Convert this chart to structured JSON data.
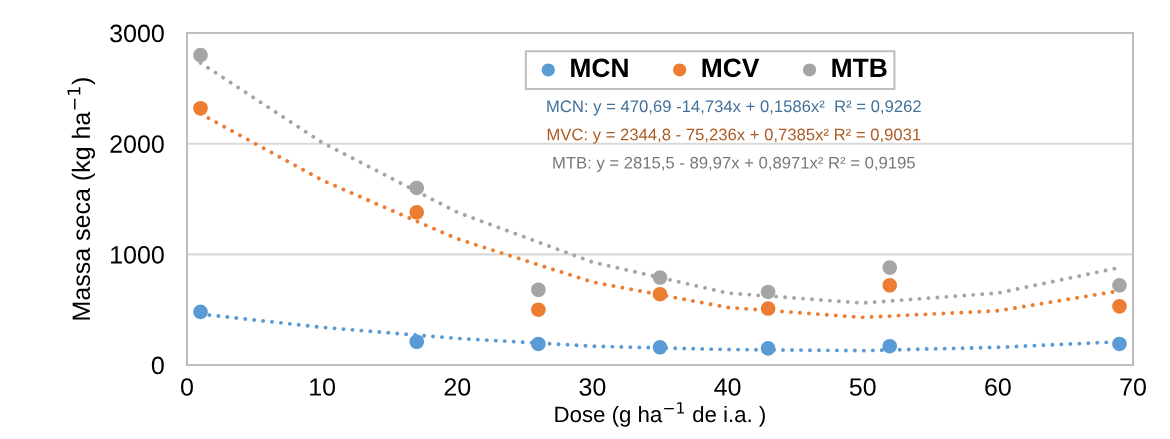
{
  "chart_data": {
    "type": "scatter",
    "xlabel": "Dose (g ha$^{−1}$ de i.a. )",
    "ylabel": "Massa seca (kg ha$^{−1}$)",
    "x": [
      1,
      17,
      26,
      35,
      43,
      52,
      69
    ],
    "xlim": [
      0,
      70
    ],
    "xticks": [
      0,
      10,
      20,
      30,
      40,
      50,
      60,
      70
    ],
    "ylim": [
      0,
      3000
    ],
    "yticks": [
      0,
      1000,
      2000,
      3000
    ],
    "grid": "y",
    "legend": "top",
    "marker": "circle",
    "series": [
      {
        "name": "MCN",
        "color": "#5b9bd5",
        "values": [
          480,
          210,
          190,
          160,
          150,
          170,
          190
        ]
      },
      {
        "name": "MCV",
        "color": "#ed7d31",
        "values": [
          2320,
          1380,
          500,
          640,
          510,
          720,
          530
        ]
      },
      {
        "name": "MTB",
        "color": "#a5a5a5",
        "values": [
          2800,
          1600,
          680,
          790,
          660,
          880,
          720
        ]
      },
      {
        "type": "line",
        "color": "#5b9bd5",
        "line_style": "dotted",
        "marker": "none",
        "x": [
          1,
          10,
          20,
          30,
          40,
          50,
          60,
          69
        ],
        "values": [
          460,
          340,
          240,
          170,
          140,
          130,
          160,
          210
        ]
      },
      {
        "type": "line",
        "color": "#ed7d31",
        "line_style": "dotted",
        "marker": "none",
        "x": [
          1,
          10,
          20,
          30,
          40,
          50,
          60,
          69
        ],
        "values": [
          2270,
          1670,
          1140,
          750,
          520,
          430,
          490,
          670
        ]
      },
      {
        "type": "line",
        "color": "#a5a5a5",
        "line_style": "dotted",
        "marker": "none",
        "x": [
          1,
          10,
          20,
          30,
          40,
          50,
          60,
          69
        ],
        "values": [
          2730,
          2010,
          1380,
          930,
          650,
          560,
          650,
          880
        ]
      }
    ],
    "annotations": [
      "MCN: y = 470,69 -14,734x + 0,1586x²  R² = 0,9262",
      "MVC: y = 2344,8 - 75,236x + 0,7385x² R² = 0,9031",
      "MTB: y = 2815,5 - 89,97x + 0,8971x² R² = 0,9195"
    ]
  }
}
